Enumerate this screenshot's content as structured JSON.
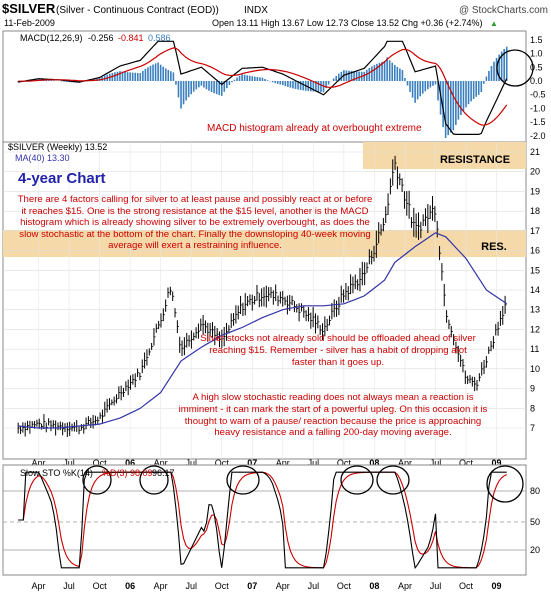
{
  "header": {
    "symbol": "$SILVER",
    "name": "(Silver - Continuous Contract (EOD))",
    "exchange": "INDX",
    "brand": "@ StockCharts.com",
    "date": "11-Feb-2009",
    "ohlc_text": "Open 13.11  High 13.67  Low 12.73  Close 13.52  Chg +0.36 (+2.74%)",
    "up_arrow": "▲"
  },
  "macd_panel": {
    "label_prefix": "MACD(12,26,9)",
    "value_main": "-0.256",
    "value_signal": "-0.841",
    "value_hist": "0.586",
    "y_ticks": [
      "1.5",
      "1.0",
      "0.5",
      "0.0",
      "-0.5",
      "-1.0",
      "-1.5",
      "-2.0"
    ],
    "annotation": "MACD histogram already at overbought extreme"
  },
  "price_panel": {
    "legend_line1": "$SILVER (Weekly) 13.52",
    "legend_line2": "MA(40) 13.30",
    "chart_title": "4-year Chart",
    "resistance_label": "RESISTANCE",
    "res_label": "RES.",
    "y_ticks": [
      "21",
      "20",
      "19",
      "18",
      "17",
      "16",
      "15",
      "14",
      "13",
      "12",
      "11",
      "10",
      "9",
      "8",
      "7"
    ],
    "note1": "There are 4 factors calling for silver to at least pause and possibly react at or before it reaches $15. One is the strong resistance at the $15 level, another is the MACD histogram which is already showing silver to be extremely overbought, as does the slow stochastic at the bottom of the chart. Finally the downsloping 40-week moving average will exert a restraining influence.",
    "note2": "Silver stocks not already sold should be offloaded ahead of  silver reaching $15. Remember - silver has a habit of dropping alot faster than it goes up.",
    "note3": "A high slow stochastic reading does not always mean a reaction is imminent - it can mark the start of a powerful upleg. On this occasion it is thought to warn of a pause/ reaction because the price is approaching heavy resistance and a falling 200-day moving average.",
    "x_labels": [
      "Apr",
      "Jul",
      "Oct",
      "06",
      "Apr",
      "Jul",
      "Oct",
      "07",
      "Apr",
      "Jul",
      "Oct",
      "08",
      "Apr",
      "Jul",
      "Oct",
      "09"
    ]
  },
  "sto_panel": {
    "legend_k": "Slow STO %K(14)",
    "legend_d": "%D(3) 98.09",
    "legend_val": "96.17",
    "y_ticks": [
      "80",
      "50",
      "20"
    ]
  },
  "x_axis_labels": [
    "Apr",
    "Jul",
    "Oct",
    "06",
    "Apr",
    "Jul",
    "Oct",
    "07",
    "Apr",
    "Jul",
    "Oct",
    "08",
    "Apr",
    "Jul",
    "Oct",
    "09"
  ],
  "colors": {
    "note_text": "#cc0000",
    "title_blue": "#2222aa",
    "band": "#f5d9a8",
    "ma_line": "#3333aa",
    "red_line": "#cc0000",
    "hist": "#3a7fc0"
  },
  "chart_data": {
    "type": "line",
    "x": [
      "2005-02",
      "2005-04",
      "2005-06",
      "2005-08",
      "2005-10",
      "2005-12",
      "2006-02",
      "2006-04",
      "2006-05",
      "2006-06",
      "2006-08",
      "2006-10",
      "2006-12",
      "2007-02",
      "2007-04",
      "2007-06",
      "2007-08",
      "2007-10",
      "2007-12",
      "2008-02",
      "2008-03",
      "2008-05",
      "2008-07",
      "2008-08",
      "2008-10",
      "2008-11",
      "2008-12",
      "2009-02"
    ],
    "series": [
      {
        "name": "$SILVER (Weekly)",
        "values": [
          7.0,
          7.2,
          7.1,
          7.0,
          7.5,
          8.8,
          9.8,
          12.5,
          14.2,
          11.0,
          12.3,
          11.4,
          13.2,
          13.8,
          13.6,
          12.9,
          12.0,
          13.8,
          14.8,
          17.5,
          20.5,
          17.0,
          18.2,
          13.0,
          9.5,
          9.2,
          10.5,
          13.52
        ]
      },
      {
        "name": "MA(40)",
        "values": [
          7.1,
          7.0,
          7.0,
          7.1,
          7.2,
          7.5,
          8.0,
          8.8,
          9.6,
          10.4,
          11.1,
          11.7,
          12.1,
          12.6,
          13.0,
          13.2,
          13.2,
          13.3,
          13.7,
          14.5,
          15.4,
          16.2,
          16.9,
          16.7,
          15.6,
          14.8,
          14.0,
          13.3
        ]
      }
    ],
    "ylim": [
      6.4,
      21.5
    ],
    "title": "4-year Chart",
    "ylabel": "",
    "xlabel": ""
  }
}
